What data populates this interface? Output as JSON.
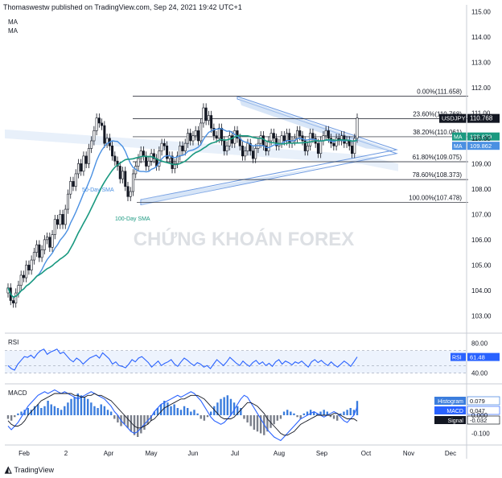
{
  "header": {
    "publish_line": "Thomaswestw published on TradingView.com, Sep 24, 2021 19:42 UTC+1"
  },
  "ma_labels": [
    "MA",
    "MA"
  ],
  "watermark": "CHỨNG KHOÁN FOREX",
  "footer": {
    "brand": "TradingView"
  },
  "colors": {
    "sma50": "#4a90e2",
    "sma100": "#1a9980",
    "up": "#131722",
    "down": "#131722",
    "channel": "#bcd3f2",
    "histogram": "#3b7ddd",
    "macd": "#2962ff",
    "signal": "#131722",
    "rsi": "#2962ff"
  },
  "chart_data": [
    {
      "type": "candlestick",
      "symbol": "USDJPY",
      "last_price": "110.768",
      "x_ticks": [
        "Feb",
        "2",
        "Apr",
        "May",
        "Jun",
        "Jul",
        "Aug",
        "Sep",
        "Oct",
        "Nov",
        "Dec"
      ],
      "y_ticks": [
        "103.00",
        "104.00",
        "105.00",
        "106.00",
        "107.00",
        "108.00",
        "109.00",
        "110.00",
        "111.00",
        "112.00",
        "113.00",
        "114.00",
        "115.00"
      ],
      "ylim": [
        102.6,
        115.2
      ],
      "fib_levels": [
        {
          "label": "0.00%(111.658)",
          "value": 111.658
        },
        {
          "label": "23.60%(110.768)",
          "value": 110.768
        },
        {
          "label": "38.20%(110.061)",
          "value": 110.061
        },
        {
          "label": "61.80%(109.075)",
          "value": 109.075
        },
        {
          "label": "78.60%(108.373)",
          "value": 108.373
        },
        {
          "label": "100.00%(107.478)",
          "value": 107.478
        }
      ],
      "annotations": [
        "50-Day SMA",
        "100-Day SMA"
      ],
      "series": [
        {
          "name": "MA",
          "last": "109.879"
        },
        {
          "name": "MA",
          "last": "109.862"
        }
      ],
      "closes": [
        104.1,
        103.6,
        103.5,
        103.9,
        104.2,
        104.6,
        104.5,
        105.0,
        104.8,
        105.2,
        105.5,
        105.8,
        105.3,
        105.6,
        106.0,
        106.1,
        105.7,
        106.2,
        106.8,
        106.6,
        107.0,
        106.6,
        107.2,
        107.8,
        108.3,
        108.1,
        108.6,
        109.0,
        108.7,
        109.3,
        109.0,
        109.6,
        109.9,
        110.3,
        110.8,
        110.6,
        110.5,
        109.8,
        110.0,
        109.7,
        109.3,
        109.1,
        108.9,
        108.4,
        108.7,
        108.1,
        107.7,
        107.9,
        108.6,
        108.9,
        109.2,
        109.5,
        109.3,
        108.9,
        109.1,
        109.4,
        109.2,
        108.9,
        109.5,
        109.8,
        109.7,
        109.2,
        109.3,
        108.8,
        109.0,
        109.3,
        109.7,
        109.5,
        109.8,
        110.2,
        109.9,
        110.1,
        110.3,
        109.9,
        110.6,
        111.2,
        110.7,
        110.9,
        110.4,
        110.1,
        110.0,
        110.4,
        109.9,
        109.5,
        109.7,
        110.1,
        109.8,
        110.3,
        110.0,
        109.7,
        109.3,
        109.5,
        109.8,
        109.5,
        109.2,
        109.6,
        109.8,
        110.1,
        109.7,
        109.5,
        109.9,
        110.2,
        110.0,
        109.7,
        109.8,
        110.1,
        109.9,
        110.2,
        109.8,
        109.9,
        110.0,
        110.3,
        110.1,
        109.9,
        109.5,
        109.7,
        110.2,
        110.0,
        109.8,
        109.4,
        109.9,
        110.1,
        110.3,
        110.0,
        109.8,
        109.7,
        110.0,
        109.9,
        110.1,
        109.8,
        109.9,
        109.7,
        109.4,
        110.0,
        110.8
      ]
    },
    {
      "type": "line",
      "title": "RSI",
      "last": "61.48",
      "y_ticks": [
        "80.00",
        "40.00"
      ],
      "ylim": [
        30,
        90
      ],
      "values": [
        50,
        46,
        44,
        52,
        57,
        62,
        61,
        64,
        60,
        66,
        70,
        72,
        65,
        68,
        70,
        72,
        66,
        68,
        63,
        58,
        55,
        60,
        57,
        52,
        56,
        60,
        62,
        64,
        60,
        67,
        63,
        59,
        52,
        55,
        50,
        49,
        47,
        52,
        58,
        55,
        60,
        62,
        58,
        54,
        48,
        52,
        56,
        50,
        53,
        55,
        58,
        52,
        49,
        55,
        60,
        57,
        53,
        50,
        54,
        52,
        48,
        50,
        46,
        52,
        58,
        54,
        50,
        55,
        61,
        57,
        53,
        50,
        56,
        52,
        49,
        54,
        57,
        52,
        55,
        50,
        53,
        49,
        55,
        58,
        52,
        56,
        54,
        51,
        55,
        53,
        56,
        52,
        48,
        55,
        58,
        54,
        57,
        53,
        50,
        55,
        51,
        48,
        52,
        56,
        53,
        49,
        55,
        61.48
      ]
    },
    {
      "type": "bar",
      "title": "MACD",
      "y_ticks": [
        "0.000",
        "-0.100"
      ],
      "ylim": [
        -0.16,
        0.16
      ],
      "legend": [
        {
          "name": "Histogram",
          "value": "0.079"
        },
        {
          "name": "MACD",
          "value": "0.047"
        },
        {
          "name": "Signal",
          "value": "-0.032"
        }
      ],
      "histogram": [
        -0.02,
        -0.03,
        -0.01,
        0.01,
        0.02,
        0.03,
        0.04,
        0.03,
        0.05,
        0.06,
        0.04,
        0.05,
        0.08,
        0.06,
        0.05,
        0.04,
        0.03,
        0.05,
        0.07,
        0.09,
        0.1,
        0.12,
        0.11,
        0.1,
        0.09,
        0.07,
        0.05,
        0.04,
        0.06,
        0.05,
        0.03,
        0.02,
        -0.02,
        -0.04,
        -0.06,
        -0.05,
        -0.07,
        -0.09,
        -0.11,
        -0.12,
        -0.1,
        -0.08,
        -0.05,
        -0.03,
        0.02,
        0.04,
        0.06,
        0.08,
        0.07,
        0.05,
        0.06,
        0.04,
        0.03,
        0.05,
        0.04,
        0.02,
        0.03,
        0.01,
        -0.02,
        -0.03,
        -0.01,
        0.02,
        0.05,
        0.07,
        0.09,
        0.1,
        0.11,
        0.09,
        0.07,
        0.05,
        0.04,
        -0.02,
        -0.04,
        -0.06,
        -0.08,
        -0.09,
        -0.1,
        -0.11,
        -0.09,
        -0.07,
        -0.05,
        -0.03,
        -0.02,
        0.02,
        0.03,
        0.02,
        0.01,
        -0.01,
        -0.02,
        0.01,
        0.02,
        0.03,
        0.02,
        0.01,
        0.02,
        0.03,
        0.02,
        -0.01,
        -0.02,
        -0.03,
        0.01,
        0.02,
        0.03,
        0.04,
        0.03,
        0.079
      ],
      "macd": [
        -0.06,
        -0.08,
        -0.06,
        -0.04,
        -0.01,
        0.02,
        0.05,
        0.07,
        0.09,
        0.11,
        0.12,
        0.13,
        0.12,
        0.13,
        0.14,
        0.13,
        0.12,
        0.13,
        0.12,
        0.11,
        0.1,
        0.09,
        0.1,
        0.11,
        0.12,
        0.13,
        0.12,
        0.11,
        0.1,
        0.09,
        0.07,
        0.05,
        0.02,
        0.0,
        -0.03,
        -0.05,
        -0.07,
        -0.09,
        -0.1,
        -0.09,
        -0.07,
        -0.05,
        -0.03,
        -0.01,
        0.02,
        0.04,
        0.06,
        0.07,
        0.08,
        0.09,
        0.1,
        0.11,
        0.1,
        0.11,
        0.12,
        0.13,
        0.12,
        0.1,
        0.08,
        0.05,
        0.02,
        -0.01,
        -0.03,
        -0.04,
        -0.05,
        -0.04,
        -0.02,
        0.0,
        0.03,
        0.06,
        0.09,
        0.11,
        0.1,
        0.07,
        0.04,
        0.01,
        -0.02,
        -0.05,
        -0.08,
        -0.1,
        -0.12,
        -0.13,
        -0.14,
        -0.12,
        -0.1,
        -0.08,
        -0.06,
        -0.04,
        -0.02,
        -0.01,
        0.0,
        0.01,
        0.02,
        0.01,
        0.0,
        -0.01,
        0.0,
        0.01,
        0.02,
        0.01,
        -0.01,
        -0.03,
        -0.04,
        -0.02,
        0.0,
        0.047
      ],
      "signal": [
        -0.03,
        -0.05,
        -0.06,
        -0.06,
        -0.05,
        -0.03,
        0.0,
        0.02,
        0.04,
        0.06,
        0.08,
        0.09,
        0.1,
        0.11,
        0.12,
        0.12,
        0.12,
        0.12,
        0.12,
        0.12,
        0.11,
        0.11,
        0.1,
        0.1,
        0.11,
        0.11,
        0.12,
        0.11,
        0.11,
        0.1,
        0.09,
        0.08,
        0.06,
        0.04,
        0.02,
        0.0,
        -0.02,
        -0.04,
        -0.06,
        -0.07,
        -0.07,
        -0.06,
        -0.05,
        -0.03,
        -0.02,
        0.0,
        0.02,
        0.04,
        0.05,
        0.06,
        0.07,
        0.08,
        0.09,
        0.09,
        0.1,
        0.11,
        0.11,
        0.11,
        0.1,
        0.09,
        0.07,
        0.05,
        0.03,
        0.01,
        -0.01,
        -0.02,
        -0.02,
        -0.02,
        -0.01,
        0.01,
        0.03,
        0.05,
        0.07,
        0.07,
        0.06,
        0.05,
        0.03,
        0.01,
        -0.02,
        -0.04,
        -0.06,
        -0.08,
        -0.1,
        -0.11,
        -0.11,
        -0.1,
        -0.09,
        -0.07,
        -0.05,
        -0.04,
        -0.03,
        -0.02,
        -0.01,
        0.0,
        0.0,
        0.0,
        0.0,
        0.0,
        0.01,
        0.01,
        0.0,
        -0.01,
        -0.02,
        -0.02,
        -0.02,
        -0.032
      ]
    }
  ]
}
